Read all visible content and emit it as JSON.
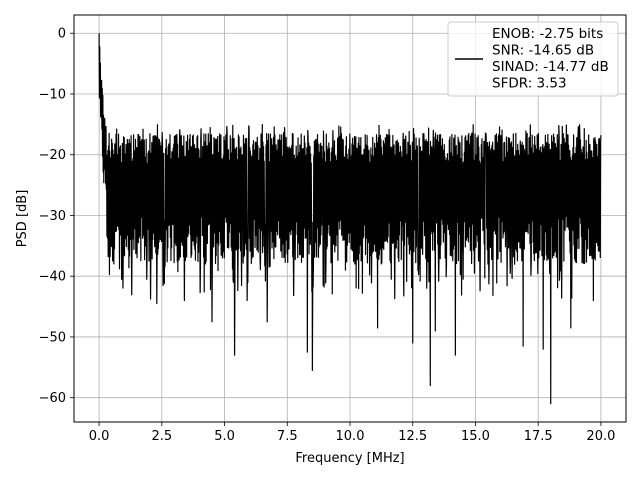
{
  "chart_data": {
    "type": "line",
    "title": "",
    "xlabel": "Frequency [MHz]",
    "ylabel": "PSD [dB]",
    "xlim": [
      -1.0,
      21.0
    ],
    "ylim": [
      -64.0,
      3.0
    ],
    "grid": true,
    "legend_placement": "top-right",
    "x_ticks": [
      {
        "value": 0.0,
        "label": "0.0"
      },
      {
        "value": 2.5,
        "label": "2.5"
      },
      {
        "value": 5.0,
        "label": "5.0"
      },
      {
        "value": 7.5,
        "label": "7.5"
      },
      {
        "value": 10.0,
        "label": "10.0"
      },
      {
        "value": 12.5,
        "label": "12.5"
      },
      {
        "value": 15.0,
        "label": "15.0"
      },
      {
        "value": 17.5,
        "label": "17.5"
      },
      {
        "value": 20.0,
        "label": "20.0"
      }
    ],
    "y_ticks": [
      {
        "value": 0,
        "label": "0"
      },
      {
        "value": -10,
        "label": "−10"
      },
      {
        "value": -20,
        "label": "−20"
      },
      {
        "value": -30,
        "label": "−30"
      },
      {
        "value": -40,
        "label": "−40"
      },
      {
        "value": -50,
        "label": "−50"
      },
      {
        "value": -60,
        "label": "−60"
      }
    ],
    "legend_lines": [
      "ENOB: -2.75 bits",
      "SNR: -14.65 dB",
      "SINAD: -14.77 dB",
      "SFDR: 3.53"
    ],
    "series": [
      {
        "color": "#000000",
        "x_range": [
          0.0,
          20.0
        ],
        "peak": {
          "x": 0.0,
          "y": 0.0
        },
        "early_decay": [
          [
            0.0,
            0.0
          ],
          [
            0.05,
            -6.0
          ],
          [
            0.1,
            -9.0
          ],
          [
            0.15,
            -12.0
          ],
          [
            0.2,
            -16.0
          ],
          [
            0.3,
            -17.0
          ]
        ],
        "band_top": -20.0,
        "band_bottom": -30.0,
        "notable_dips": [
          {
            "x": 0.45,
            "y": -34.0
          },
          {
            "x": 0.9,
            "y": -40.5
          },
          {
            "x": 1.9,
            "y": -40.5
          },
          {
            "x": 2.3,
            "y": -44.5
          },
          {
            "x": 3.4,
            "y": -44.0
          },
          {
            "x": 4.5,
            "y": -47.5
          },
          {
            "x": 5.4,
            "y": -53.0
          },
          {
            "x": 5.9,
            "y": -44.0
          },
          {
            "x": 6.7,
            "y": -47.5
          },
          {
            "x": 8.3,
            "y": -52.5
          },
          {
            "x": 8.5,
            "y": -55.5
          },
          {
            "x": 11.1,
            "y": -48.5
          },
          {
            "x": 12.5,
            "y": -51.0
          },
          {
            "x": 13.2,
            "y": -58.0
          },
          {
            "x": 13.4,
            "y": -49.0
          },
          {
            "x": 14.2,
            "y": -53.0
          },
          {
            "x": 16.9,
            "y": -51.5
          },
          {
            "x": 17.7,
            "y": -52.0
          },
          {
            "x": 18.0,
            "y": -61.0
          },
          {
            "x": 18.8,
            "y": -48.5
          },
          {
            "x": 19.7,
            "y": -44.0
          }
        ]
      }
    ]
  }
}
